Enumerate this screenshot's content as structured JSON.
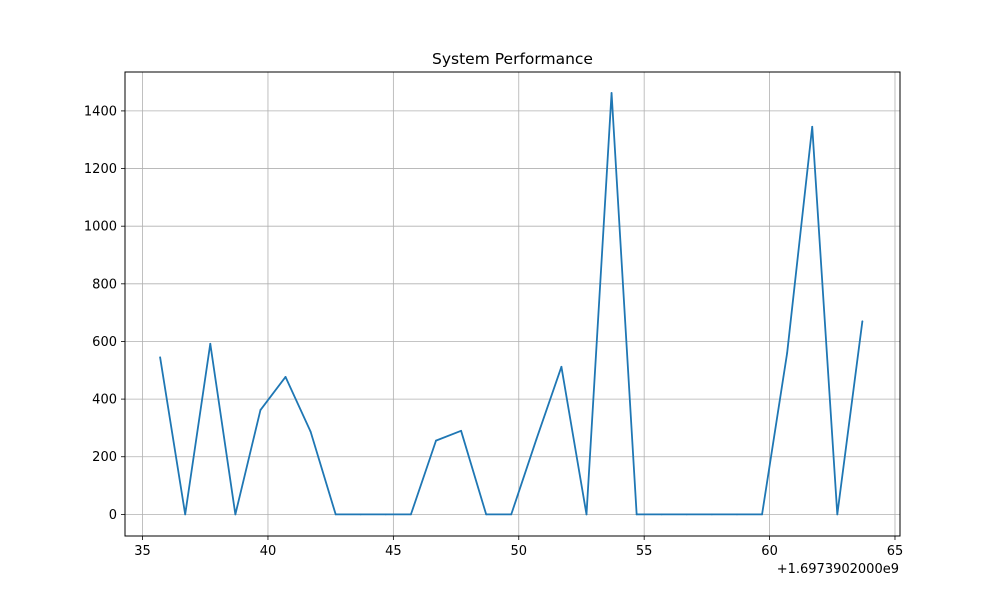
{
  "chart_data": {
    "type": "line",
    "title": "System Performance",
    "xlabel": "",
    "ylabel": "",
    "x_offset_label": "+1.6973902000e9",
    "x": [
      35.7,
      36.7,
      37.7,
      38.7,
      39.7,
      40.7,
      41.7,
      42.7,
      43.7,
      44.7,
      45.7,
      46.7,
      47.7,
      48.7,
      49.7,
      50.7,
      51.7,
      52.7,
      53.7,
      54.7,
      55.7,
      56.7,
      57.7,
      58.7,
      59.7,
      60.7,
      61.7,
      62.7,
      63.7
    ],
    "series": [
      {
        "values": [
          545,
          0,
          592,
          0,
          362,
          477,
          287,
          0,
          0,
          0,
          0,
          256,
          290,
          0,
          0,
          260,
          512,
          0,
          1462,
          0,
          0,
          0,
          0,
          0,
          0,
          560,
          1345,
          0,
          670
        ],
        "color": "#1f77b4"
      }
    ],
    "xlim": [
      34.3,
      65.2
    ],
    "ylim": [
      -75,
      1535
    ],
    "xticks": [
      {
        "value": 35,
        "label": "35"
      },
      {
        "value": 40,
        "label": "40"
      },
      {
        "value": 45,
        "label": "45"
      },
      {
        "value": 50,
        "label": "50"
      },
      {
        "value": 55,
        "label": "55"
      },
      {
        "value": 60,
        "label": "60"
      },
      {
        "value": 65,
        "label": "65"
      }
    ],
    "yticks": [
      {
        "value": 0,
        "label": "0"
      },
      {
        "value": 200,
        "label": "200"
      },
      {
        "value": 400,
        "label": "400"
      },
      {
        "value": 600,
        "label": "600"
      },
      {
        "value": 800,
        "label": "800"
      },
      {
        "value": 1000,
        "label": "1000"
      },
      {
        "value": 1200,
        "label": "1200"
      },
      {
        "value": 1400,
        "label": "1400"
      }
    ],
    "grid": true,
    "legend": "none"
  }
}
